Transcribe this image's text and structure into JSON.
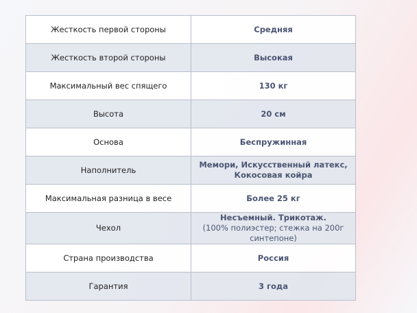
{
  "rows": [
    {
      "label": "Жесткость первой стороны",
      "value": "Средняя"
    },
    {
      "label": "Жесткость второй стороны",
      "value": "Высокая"
    },
    {
      "label": "Максимальный вес спящего",
      "value": "130 кг"
    },
    {
      "label": "Высота",
      "value": "20 см"
    },
    {
      "label": "Основа",
      "value": "Беспружинная"
    },
    {
      "label": "Наполнитель",
      "value": "Мемори, Искусственный латекс,",
      "value2": "Кокосовая койра"
    },
    {
      "label": "Максимальная разница в весе",
      "value": "Более 25 кг"
    },
    {
      "label": "Чехол",
      "value": "Несъемный. Трикотаж.",
      "value_sub": "(100% полиэстер; стежка на 200г синтепоне)"
    },
    {
      "label": "Страна производства",
      "value": "Россия"
    },
    {
      "label": "Гарантия",
      "value": "3 года"
    }
  ]
}
